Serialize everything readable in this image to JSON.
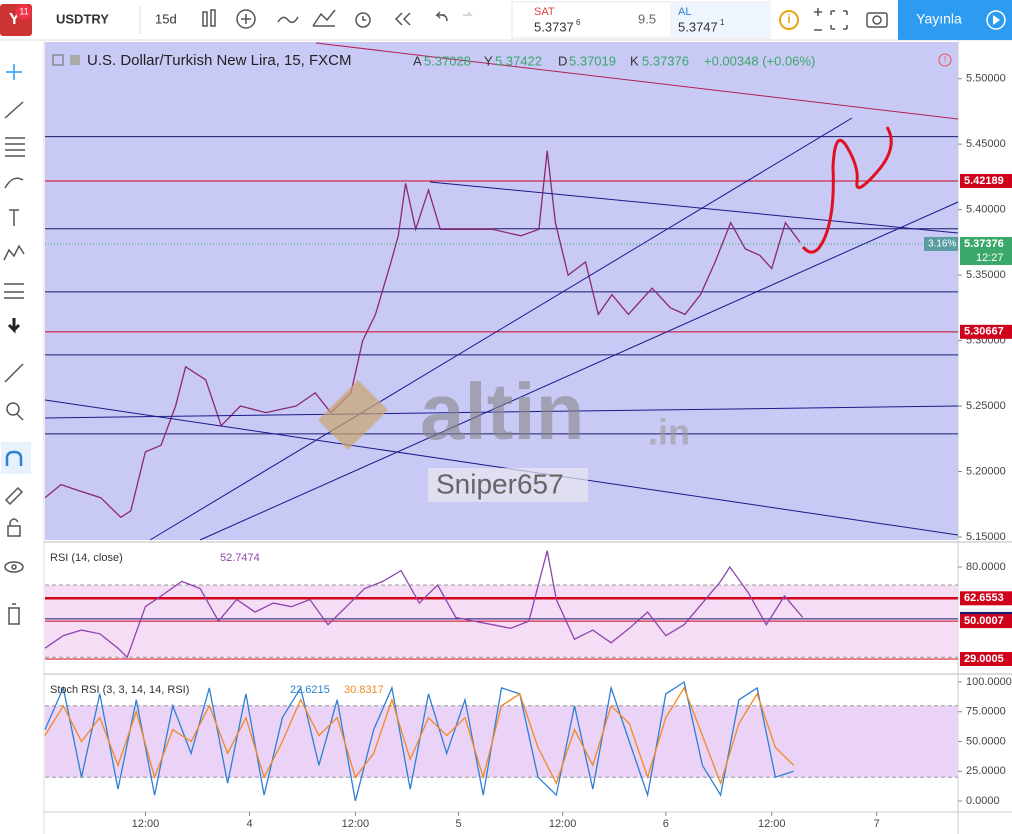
{
  "toolbar": {
    "badge": "11",
    "symbol": "USDTRY",
    "interval": "15d",
    "sell_label": "SAT",
    "sell_price": "5.3737",
    "sell_sup": "6",
    "spread": "9.5",
    "buy_label": "AL",
    "buy_price": "5.3747",
    "buy_sup": "1",
    "publish": "Yayınla"
  },
  "legend": {
    "title": "U.S. Dollar/Turkish New Lira, 15, FXCM",
    "open_label": "A",
    "open": "5.37028",
    "high_label": "Y",
    "high": "5.37422",
    "low_label": "D",
    "low": "5.37019",
    "close_label": "K",
    "close": "5.37376",
    "change": "+0.00348 (+0.06%)"
  },
  "watermark": {
    "brand": "altin",
    "domain": ".in",
    "author": "Sniper657"
  },
  "chart_data": [
    {
      "type": "line",
      "color": "#8b2a6b",
      "xlim": [
        0,
        100
      ],
      "xticks": [
        {
          "value": 11,
          "label": "12:00"
        },
        {
          "value": 22.4,
          "label": "4"
        },
        {
          "value": 34,
          "label": "12:00"
        },
        {
          "value": 45.3,
          "label": "5"
        },
        {
          "value": 56.7,
          "label": "12:00"
        },
        {
          "value": 68,
          "label": "6"
        },
        {
          "value": 79.6,
          "label": "12:00"
        },
        {
          "value": 91.1,
          "label": "7"
        }
      ],
      "x": [
        0,
        1.75,
        3.9,
        6.1,
        8.3,
        9.4,
        11,
        12.7,
        14.3,
        15.4,
        17.6,
        19.3,
        21.4,
        24.2,
        27.5,
        29.6,
        31.3,
        33.5,
        34.8,
        36.2,
        37.9,
        38.7,
        39.5,
        40.6,
        42,
        43.3,
        45.5,
        49,
        52.1,
        54.1,
        55,
        55.9,
        57.3,
        59.2,
        60.6,
        62.1,
        63.9,
        66.5,
        68.5,
        70.1,
        71.8,
        73.4,
        75.1,
        76.7,
        78.3,
        79.6,
        81.1,
        82.7
      ],
      "values": [
        5.18,
        5.19,
        5.185,
        5.18,
        5.165,
        5.17,
        5.215,
        5.22,
        5.25,
        5.28,
        5.27,
        5.235,
        5.25,
        5.245,
        5.25,
        5.26,
        5.245,
        5.26,
        5.3,
        5.32,
        5.36,
        5.38,
        5.42,
        5.385,
        5.415,
        5.385,
        5.385,
        5.385,
        5.38,
        5.385,
        5.445,
        5.39,
        5.35,
        5.36,
        5.32,
        5.335,
        5.32,
        5.34,
        5.325,
        5.32,
        5.335,
        5.36,
        5.39,
        5.37,
        5.365,
        5.355,
        5.39,
        5.375
      ],
      "ylim": [
        5.1477,
        5.528
      ],
      "yticks": [
        {
          "value": 5.5,
          "label": "5.50000"
        },
        {
          "value": 5.45,
          "label": "5.45000"
        },
        {
          "value": 5.4,
          "label": "5.40000"
        },
        {
          "value": 5.35,
          "label": "5.35000"
        },
        {
          "value": 5.3,
          "label": "5.30000"
        },
        {
          "value": 5.25,
          "label": "5.25000"
        },
        {
          "value": 5.2,
          "label": "5.20000"
        },
        {
          "value": 5.15,
          "label": "5.15000"
        }
      ],
      "levels": [
        {
          "value": 5.4557,
          "color": "#1a1a6e"
        },
        {
          "value": 5.42189,
          "color": "#d0021b",
          "tag": true
        },
        {
          "value": 5.3854,
          "color": "#1a1a6e"
        },
        {
          "value": 5.3372,
          "color": "#1a1a6e"
        },
        {
          "value": 5.30667,
          "color": "#d0021b",
          "tag": true
        },
        {
          "value": 5.2891,
          "color": "#1a1a6e"
        },
        {
          "value": 5.2287,
          "color": "#1a1a6e"
        }
      ],
      "last": 5.37376,
      "last_change": "3.16%",
      "countdown": "12:27"
    },
    {
      "type": "line",
      "title": "RSI (14, close)",
      "current": "52.7474",
      "color": "#8e44ad",
      "xlim": [
        0,
        100
      ],
      "x": [
        0,
        2,
        4,
        6,
        8,
        9,
        11,
        13,
        15,
        17,
        19,
        21,
        23,
        25,
        27,
        29,
        31,
        33,
        35,
        37,
        39,
        41,
        43,
        45,
        47,
        49,
        51,
        53,
        55,
        56,
        58,
        60,
        62,
        64,
        66,
        68,
        70,
        72,
        74,
        75,
        77,
        79,
        81,
        83
      ],
      "values": [
        35,
        42,
        45,
        43,
        35,
        30,
        58,
        65,
        72,
        68,
        50,
        62,
        55,
        60,
        58,
        62,
        48,
        58,
        68,
        72,
        78,
        60,
        70,
        52,
        50,
        48,
        46,
        50,
        89,
        62,
        40,
        45,
        38,
        46,
        55,
        42,
        48,
        60,
        72,
        80,
        66,
        48,
        64,
        52
      ],
      "ylim": [
        21.8,
        92.2
      ],
      "yticks": [
        {
          "value": 80,
          "label": "80.0000"
        }
      ],
      "band": [
        30,
        70
      ],
      "levels": [
        {
          "value": 62.6553,
          "color": "#d0021b",
          "tag": true
        },
        {
          "value": 51.2273,
          "color": "#1a1a6e",
          "tag": true
        },
        {
          "value": 50.0007,
          "color": "#d0021b",
          "tag": true
        },
        {
          "value": 29.0005,
          "color": "#d0021b",
          "tag": true
        }
      ]
    },
    {
      "type": "stoch",
      "title": "Stoch RSI (3, 3, 14, 14, RSI)",
      "xlim": [
        0,
        100
      ],
      "x": [
        0,
        2,
        4,
        6,
        8,
        10,
        12,
        14,
        16,
        18,
        20,
        22,
        24,
        26,
        28,
        30,
        32,
        34,
        36,
        38,
        40,
        42,
        44,
        46,
        48,
        50,
        52,
        54,
        56,
        58,
        60,
        62,
        64,
        66,
        68,
        70,
        72,
        74,
        76,
        78,
        80,
        82
      ],
      "series": [
        {
          "current": 22.6215,
          "color": "#2d7fd3",
          "values": [
            60,
            95,
            20,
            90,
            10,
            85,
            5,
            80,
            40,
            95,
            15,
            90,
            5,
            70,
            95,
            30,
            85,
            0,
            60,
            95,
            10,
            90,
            40,
            85,
            5,
            95,
            90,
            20,
            5,
            80,
            10,
            95,
            50,
            5,
            90,
            100,
            30,
            5,
            85,
            95,
            20,
            25
          ]
        },
        {
          "current": 30.8317,
          "color": "#f08a24",
          "values": [
            55,
            80,
            50,
            70,
            30,
            75,
            20,
            60,
            50,
            80,
            40,
            70,
            20,
            50,
            85,
            55,
            70,
            20,
            40,
            85,
            35,
            70,
            55,
            70,
            20,
            80,
            90,
            45,
            15,
            60,
            30,
            80,
            65,
            20,
            70,
            95,
            55,
            15,
            65,
            90,
            45,
            30
          ]
        }
      ],
      "ylim": [
        -9.2,
        105
      ],
      "yticks": [
        {
          "value": 100,
          "label": "100.0000"
        },
        {
          "value": 75,
          "label": "75.0000"
        },
        {
          "value": 50,
          "label": "50.0000"
        },
        {
          "value": 25,
          "label": "25.0000"
        },
        {
          "value": 0,
          "label": "0.0000"
        }
      ],
      "band": [
        20,
        80
      ]
    }
  ]
}
